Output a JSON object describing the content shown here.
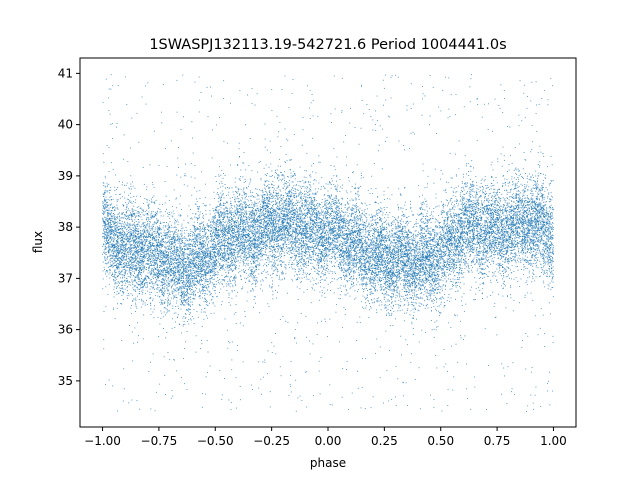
{
  "chart_data": {
    "type": "scatter",
    "title": "1SWASPJ132113.19-542721.6 Period 1004441.0s",
    "xlabel": "phase",
    "ylabel": "flux",
    "xlim": [
      -1.1,
      1.1
    ],
    "ylim": [
      34.1,
      41.3
    ],
    "xticks": [
      -1.0,
      -0.75,
      -0.5,
      -0.25,
      0.0,
      0.25,
      0.5,
      0.75,
      1.0
    ],
    "xtick_labels": [
      "−1.00",
      "−0.75",
      "−0.50",
      "−0.25",
      "0.00",
      "0.25",
      "0.50",
      "0.75",
      "1.00"
    ],
    "yticks": [
      35,
      36,
      37,
      38,
      39,
      40,
      41
    ],
    "ytick_labels": [
      "35",
      "36",
      "37",
      "38",
      "39",
      "40",
      "41"
    ],
    "grid": false,
    "marker_color": "#1f77b4",
    "series": [
      {
        "phase_range": [
          -1.0,
          1.0
        ],
        "point_count_estimate": 20000,
        "mean_flux_profile": {
          "phase": [
            0.0,
            0.05,
            0.1,
            0.15,
            0.2,
            0.25,
            0.3,
            0.35,
            0.4,
            0.45,
            0.5,
            0.55,
            0.6,
            0.65,
            0.7,
            0.75,
            0.8,
            0.85,
            0.9,
            0.95,
            1.0
          ],
          "flux": [
            37.9,
            37.8,
            37.6,
            37.6,
            37.5,
            37.4,
            37.3,
            37.3,
            37.3,
            37.4,
            37.5,
            37.7,
            37.9,
            37.9,
            38.0,
            38.0,
            38.0,
            38.0,
            38.0,
            37.95,
            37.9
          ]
        },
        "core_spread_sigma": 0.45,
        "outlier_flux_range": [
          34.4,
          41.0
        ]
      }
    ]
  }
}
